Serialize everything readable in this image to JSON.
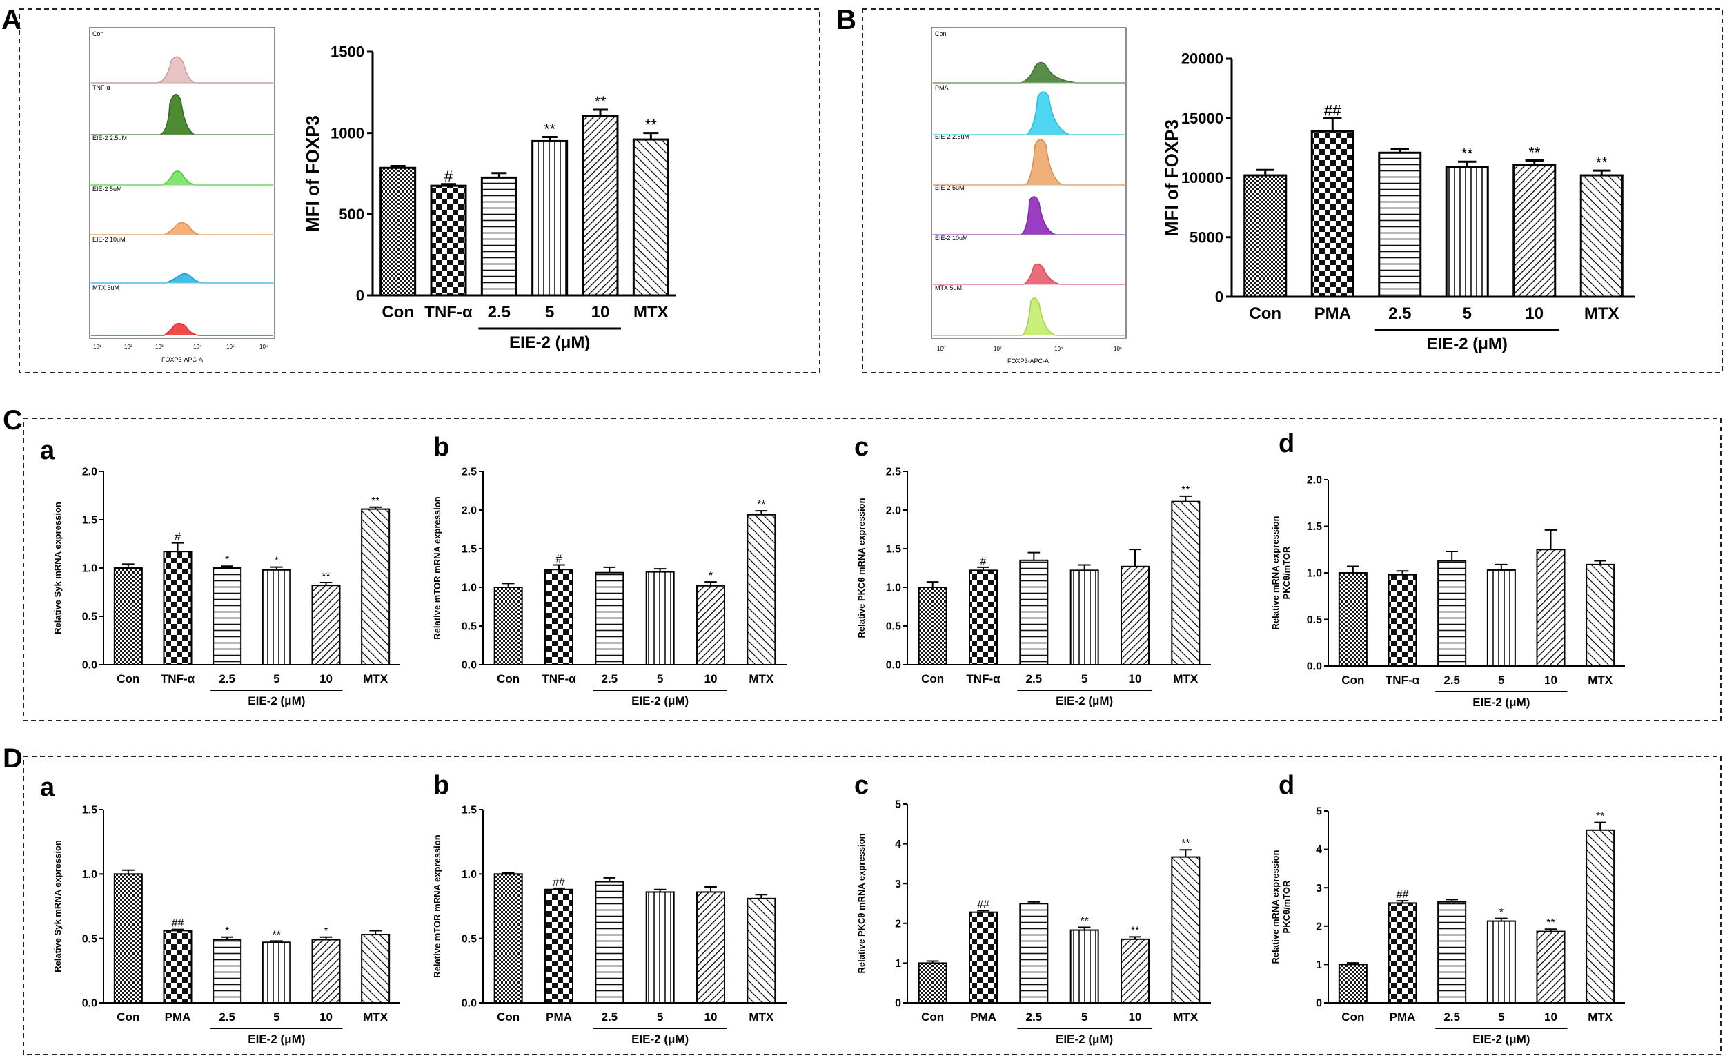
{
  "panels": {
    "A": "A",
    "B": "B",
    "C": "C",
    "D": "D"
  },
  "flow": {
    "A": {
      "labels": [
        "Con",
        "TNF-α",
        "EIE-2 2.5uM",
        "EIE-2 5uM",
        "EIE-2 10uM",
        "MTX 5uM"
      ],
      "axis_ticks": [
        "10¹",
        "10²",
        "10³",
        "10⁴",
        "10⁵",
        "10⁶"
      ],
      "axis_label": "FOXP3-APC-A"
    },
    "B": {
      "labels": [
        "Con",
        "PMA",
        "EIE-2 2.5uM",
        "EIE-2 5uM",
        "EIE-2 10uM",
        "MTX 5uM"
      ],
      "axis_ticks": [
        "10⁰",
        "10²",
        "10⁴",
        "10⁶"
      ],
      "axis_label": "FOXP3-APC-A"
    }
  },
  "chart_data": [
    {
      "id": "A",
      "type": "bar",
      "ylabel": "MFI of FOXP3",
      "categories": [
        "Con",
        "TNF-α",
        "2.5",
        "5",
        "10",
        "MTX"
      ],
      "group_label": "EIE-2 (μM)",
      "values": [
        785,
        675,
        725,
        950,
        1105,
        960
      ],
      "errors": [
        12,
        10,
        28,
        25,
        38,
        40
      ],
      "sig": [
        "",
        "#",
        "",
        "**",
        "**",
        "**"
      ],
      "ylim": [
        0,
        1500
      ],
      "yticks": [
        "0",
        "500",
        "1000",
        "1500"
      ]
    },
    {
      "id": "B",
      "type": "bar",
      "ylabel": "MFI of FOXP3",
      "categories": [
        "Con",
        "PMA",
        "2.5",
        "5",
        "10",
        "MTX"
      ],
      "group_label": "EIE-2 (μM)",
      "values": [
        10200,
        13900,
        12100,
        10900,
        11050,
        10200
      ],
      "errors": [
        450,
        1100,
        300,
        450,
        400,
        400
      ],
      "sig": [
        "",
        "##",
        "",
        "**",
        "**",
        "**"
      ],
      "ylim": [
        0,
        20000
      ],
      "yticks": [
        "0",
        "5000",
        "10000",
        "15000",
        "20000"
      ]
    },
    {
      "id": "Ca",
      "type": "bar",
      "ylabel": "Relative Syk mRNA expression",
      "categories": [
        "Con",
        "TNF-α",
        "2.5",
        "5",
        "10",
        "MTX"
      ],
      "group_label": "EIE-2 (μM)",
      "values": [
        1.0,
        1.17,
        1.0,
        0.98,
        0.82,
        1.61
      ],
      "errors": [
        0.04,
        0.09,
        0.02,
        0.03,
        0.03,
        0.02
      ],
      "sig": [
        "",
        "#",
        "*",
        "*",
        "**",
        "**"
      ],
      "ylim": [
        0,
        2.0
      ],
      "yticks": [
        "0.0",
        "0.5",
        "1.0",
        "1.5",
        "2.0"
      ]
    },
    {
      "id": "Cb",
      "type": "bar",
      "ylabel": "Relative mTOR mRNA expression",
      "categories": [
        "Con",
        "TNF-α",
        "2.5",
        "5",
        "10",
        "MTX"
      ],
      "group_label": "EIE-2 (μM)",
      "values": [
        1.0,
        1.23,
        1.19,
        1.2,
        1.02,
        1.94
      ],
      "errors": [
        0.05,
        0.06,
        0.07,
        0.04,
        0.05,
        0.05
      ],
      "sig": [
        "",
        "#",
        "",
        "",
        "*",
        "**"
      ],
      "ylim": [
        0,
        2.5
      ],
      "yticks": [
        "0.0",
        "0.5",
        "1.0",
        "1.5",
        "2.0",
        "2.5"
      ]
    },
    {
      "id": "Cc",
      "type": "bar",
      "ylabel": "Relative PKCθ mRNA expression",
      "categories": [
        "Con",
        "TNF-α",
        "2.5",
        "5",
        "10",
        "MTX"
      ],
      "group_label": "EIE-2 (μM)",
      "values": [
        1.0,
        1.22,
        1.35,
        1.22,
        1.27,
        2.11
      ],
      "errors": [
        0.07,
        0.04,
        0.1,
        0.07,
        0.22,
        0.07
      ],
      "sig": [
        "",
        "#",
        "",
        "",
        "",
        "**"
      ],
      "ylim": [
        0,
        2.5
      ],
      "yticks": [
        "0.0",
        "0.5",
        "1.0",
        "1.5",
        "2.0",
        "2.5"
      ]
    },
    {
      "id": "Cd",
      "type": "bar",
      "ylabel": "Relative mRNA expression",
      "ylabel2": "PKCθ/mTOR",
      "categories": [
        "Con",
        "TNF-α",
        "2.5",
        "5",
        "10",
        "MTX"
      ],
      "group_label": "EIE-2 (μM)",
      "values": [
        1.0,
        0.98,
        1.13,
        1.03,
        1.25,
        1.09
      ],
      "errors": [
        0.07,
        0.04,
        0.1,
        0.06,
        0.21,
        0.04
      ],
      "sig": [
        "",
        "",
        "",
        "",
        "",
        ""
      ],
      "ylim": [
        0,
        2.0
      ],
      "yticks": [
        "0.0",
        "0.5",
        "1.0",
        "1.5",
        "2.0"
      ]
    },
    {
      "id": "Da",
      "type": "bar",
      "ylabel": "Relative Syk mRNA expression",
      "categories": [
        "Con",
        "PMA",
        "2.5",
        "5",
        "10",
        "MTX"
      ],
      "group_label": "EIE-2 (μM)",
      "values": [
        1.0,
        0.56,
        0.49,
        0.47,
        0.49,
        0.53
      ],
      "errors": [
        0.03,
        0.01,
        0.02,
        0.01,
        0.02,
        0.03
      ],
      "sig": [
        "",
        "##",
        "*",
        "**",
        "*",
        ""
      ],
      "ylim": [
        0,
        1.5
      ],
      "yticks": [
        "0.0",
        "0.5",
        "1.0",
        "1.5"
      ]
    },
    {
      "id": "Db",
      "type": "bar",
      "ylabel": "Relative mTOR mRNA expression",
      "categories": [
        "Con",
        "PMA",
        "2.5",
        "5",
        "10",
        "MTX"
      ],
      "group_label": "EIE-2 (μM)",
      "values": [
        1.0,
        0.88,
        0.94,
        0.86,
        0.86,
        0.81
      ],
      "errors": [
        0.01,
        0.01,
        0.03,
        0.02,
        0.04,
        0.03
      ],
      "sig": [
        "",
        "##",
        "",
        "",
        "",
        ""
      ],
      "ylim": [
        0,
        1.5
      ],
      "yticks": [
        "0.0",
        "0.5",
        "1.0",
        "1.5"
      ]
    },
    {
      "id": "Dc",
      "type": "bar",
      "ylabel": "Relative PKCθ mRNA expression",
      "categories": [
        "Con",
        "PMA",
        "2.5",
        "5",
        "10",
        "MTX"
      ],
      "group_label": "EIE-2 (μM)",
      "values": [
        1.0,
        2.28,
        2.5,
        1.83,
        1.6,
        3.67
      ],
      "errors": [
        0.05,
        0.04,
        0.04,
        0.07,
        0.06,
        0.18
      ],
      "sig": [
        "",
        "##",
        "",
        "**",
        "**",
        "**"
      ],
      "ylim": [
        0,
        5
      ],
      "yticks": [
        "0",
        "1",
        "2",
        "3",
        "4",
        "5"
      ]
    },
    {
      "id": "Dd",
      "type": "bar",
      "ylabel": "Relative mRNA expression",
      "ylabel2": "PKCθ/mTOR",
      "categories": [
        "Con",
        "PMA",
        "2.5",
        "5",
        "10",
        "MTX"
      ],
      "group_label": "EIE-2 (μM)",
      "values": [
        1.0,
        2.6,
        2.63,
        2.13,
        1.86,
        4.5
      ],
      "errors": [
        0.04,
        0.06,
        0.06,
        0.07,
        0.06,
        0.2
      ],
      "sig": [
        "",
        "##",
        "",
        "*",
        "**",
        "**"
      ],
      "ylim": [
        0,
        5
      ],
      "yticks": [
        "0",
        "1",
        "2",
        "3",
        "4",
        "5"
      ]
    }
  ]
}
